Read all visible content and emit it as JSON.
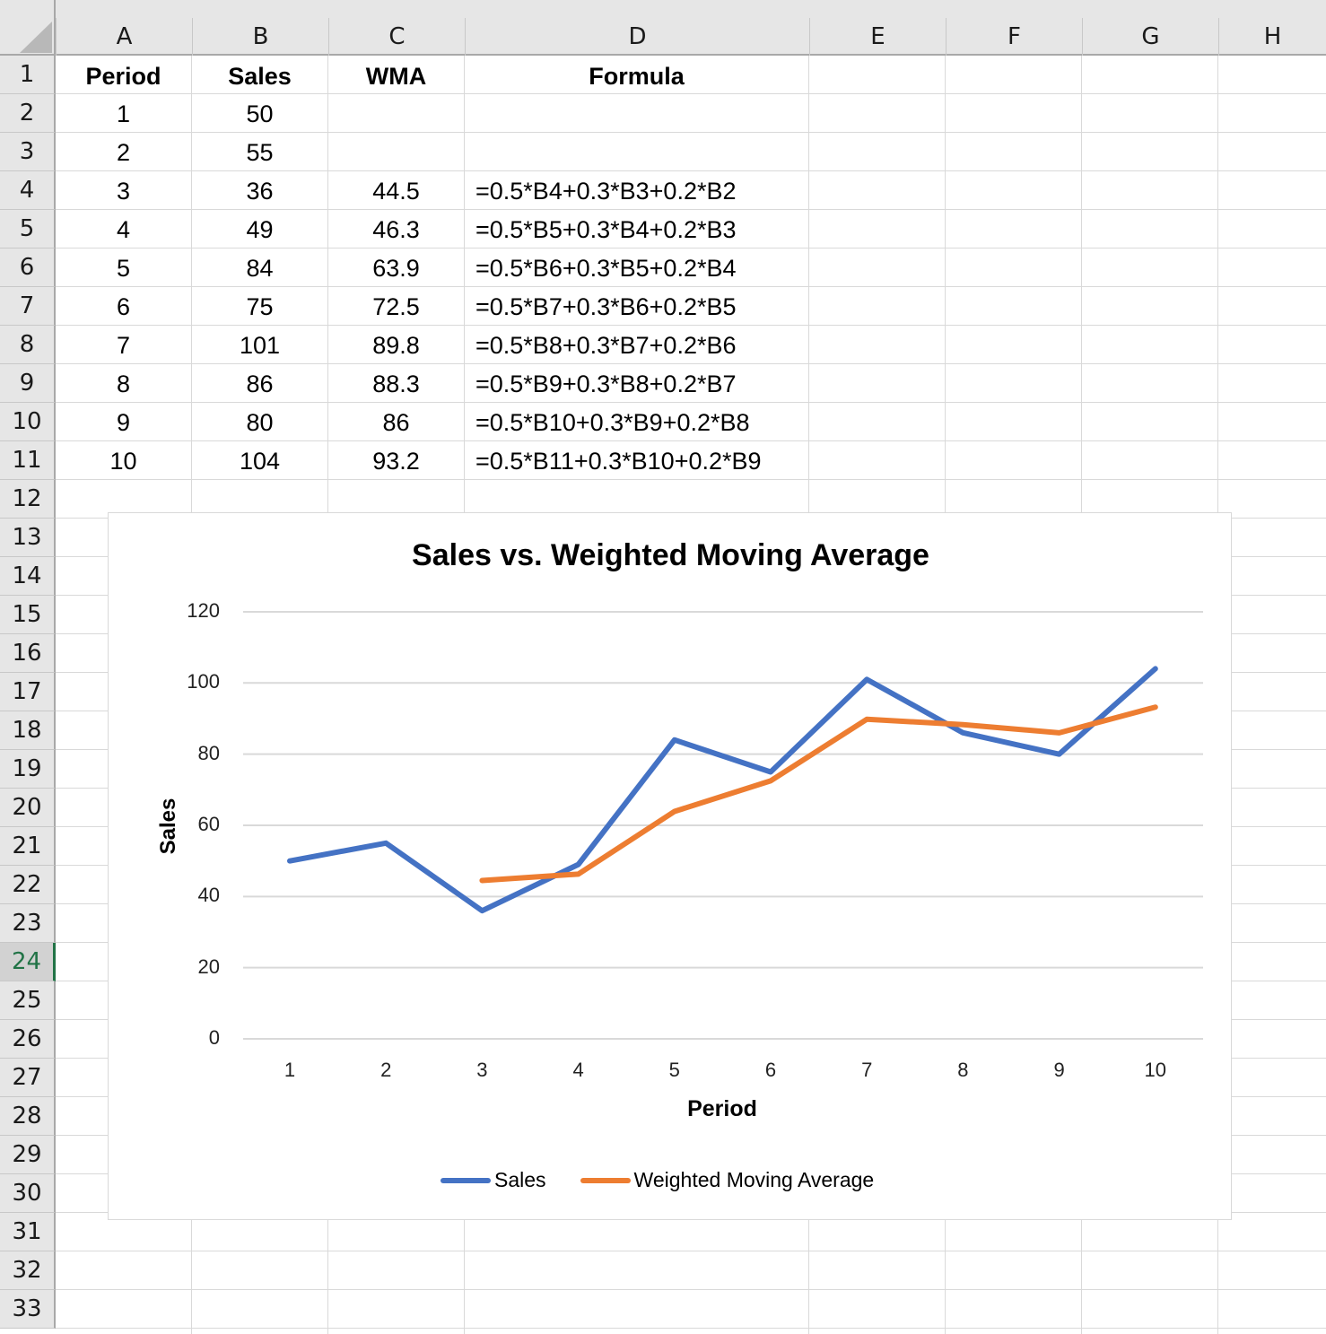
{
  "sheet": {
    "columns": [
      "A",
      "B",
      "C",
      "D",
      "E",
      "F",
      "G",
      "H"
    ],
    "rows": [
      "1",
      "2",
      "3",
      "4",
      "5",
      "6",
      "7",
      "8",
      "9",
      "10",
      "11",
      "12",
      "13",
      "14",
      "15",
      "16",
      "17",
      "18",
      "19",
      "20",
      "21",
      "22",
      "23",
      "24",
      "25",
      "26",
      "27",
      "28",
      "29",
      "30",
      "31",
      "32",
      "33"
    ],
    "selected_row": "24",
    "header": {
      "period": "Period",
      "sales": "Sales",
      "wma": "WMA",
      "formula": "Formula"
    },
    "data": [
      {
        "period": "1",
        "sales": "50",
        "wma": "",
        "formula": ""
      },
      {
        "period": "2",
        "sales": "55",
        "wma": "",
        "formula": ""
      },
      {
        "period": "3",
        "sales": "36",
        "wma": "44.5",
        "formula": "=0.5*B4+0.3*B3+0.2*B2"
      },
      {
        "period": "4",
        "sales": "49",
        "wma": "46.3",
        "formula": "=0.5*B5+0.3*B4+0.2*B3"
      },
      {
        "period": "5",
        "sales": "84",
        "wma": "63.9",
        "formula": "=0.5*B6+0.3*B5+0.2*B4"
      },
      {
        "period": "6",
        "sales": "75",
        "wma": "72.5",
        "formula": "=0.5*B7+0.3*B6+0.2*B5"
      },
      {
        "period": "7",
        "sales": "101",
        "wma": "89.8",
        "formula": "=0.5*B8+0.3*B7+0.2*B6"
      },
      {
        "period": "8",
        "sales": "86",
        "wma": "88.3",
        "formula": "=0.5*B9+0.3*B8+0.2*B7"
      },
      {
        "period": "9",
        "sales": "80",
        "wma": "86",
        "formula": "=0.5*B10+0.3*B9+0.2*B8"
      },
      {
        "period": "10",
        "sales": "104",
        "wma": "93.2",
        "formula": "=0.5*B11+0.3*B10+0.2*B9"
      }
    ]
  },
  "colors": {
    "sales": "#4472c4",
    "wma": "#ed7d31",
    "selection": "#217346",
    "gridline": "#d9d9d9"
  },
  "chart_data": {
    "type": "line",
    "title": "Sales vs. Weighted Moving Average",
    "xlabel": "Period",
    "ylabel": "Sales",
    "categories": [
      "1",
      "2",
      "3",
      "4",
      "5",
      "6",
      "7",
      "8",
      "9",
      "10"
    ],
    "yticks": [
      "0",
      "20",
      "40",
      "60",
      "80",
      "100",
      "120"
    ],
    "ylim": [
      0,
      120
    ],
    "grid": true,
    "legend_position": "bottom",
    "series": [
      {
        "name": "Sales",
        "values": [
          50,
          55,
          36,
          49,
          84,
          75,
          101,
          86,
          80,
          104
        ]
      },
      {
        "name": "Weighted Moving Average",
        "values": [
          null,
          null,
          44.5,
          46.3,
          63.9,
          72.5,
          89.8,
          88.3,
          86,
          93.2
        ]
      }
    ]
  }
}
